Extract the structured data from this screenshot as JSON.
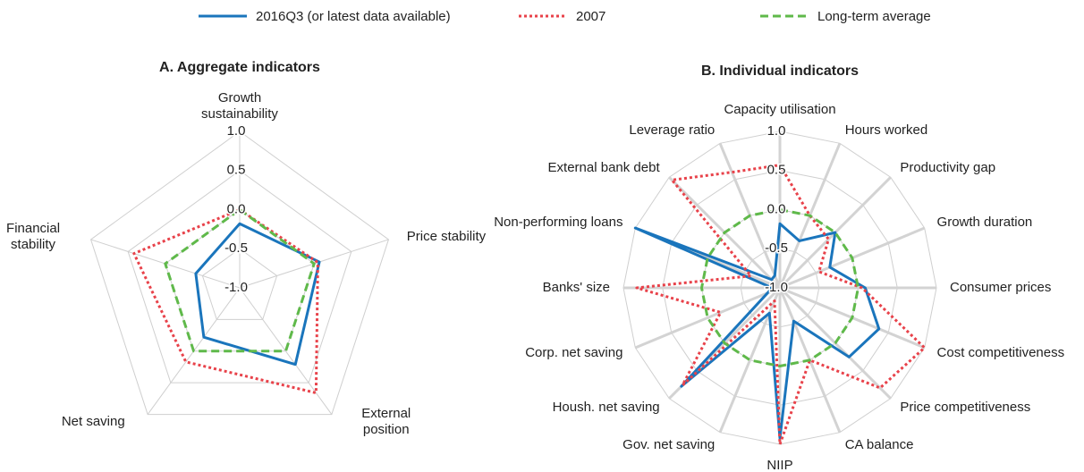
{
  "chart_data": [
    {
      "type": "radar",
      "title": "A. Aggregate indicators",
      "categories": [
        "Growth sustainability",
        "Price stability",
        "External position",
        "Net saving",
        "Financial stability"
      ],
      "series": [
        {
          "name": "2016Q3 (or latest data available)",
          "color": "#1a75bc",
          "dash": "solid",
          "values": [
            -0.18,
            0.07,
            0.21,
            -0.22,
            -0.41
          ]
        },
        {
          "name": "2007",
          "color": "#e8424a",
          "dash": "dotted",
          "values": [
            0.0,
            0.05,
            0.66,
            0.17,
            0.42
          ]
        },
        {
          "name": "Long-term average",
          "color": "#5fb94a",
          "dash": "dashed",
          "values": [
            0,
            0,
            0,
            0,
            0
          ]
        }
      ],
      "ylim": [
        -1,
        1
      ],
      "yticks": [
        {
          "value": -1,
          "label": "-1.0"
        },
        {
          "value": -0.5,
          "label": "-0.5"
        },
        {
          "value": 0,
          "label": "0.0"
        },
        {
          "value": 0.5,
          "label": "0.5"
        },
        {
          "value": 1,
          "label": "1.0"
        }
      ]
    },
    {
      "type": "radar",
      "title": "B.  Individual indicators",
      "categories": [
        "Capacity utilisation",
        "Hours worked",
        "Productivity gap",
        "Growth  duration",
        "Consumer prices",
        "Cost competitiveness",
        "Price competitiveness",
        "CA balance",
        "NIIP",
        "Gov. net saving",
        "Housh. net saving",
        "Corp. net saving",
        "Banks' size",
        "Non-performing loans",
        "External bank debt",
        "Leverage ratio"
      ],
      "series": [
        {
          "color": "#1a75bc",
          "dash": "solid",
          "values": [
            -0.18,
            -0.35,
            0.0,
            -0.31,
            0.09,
            0.37,
            0.25,
            -0.54,
            0.92,
            -0.65,
            0.78,
            -0.83,
            -0.9,
            1.0,
            -0.85,
            -0.83
          ]
        },
        {
          "color": "#e8424a",
          "dash": "dotted",
          "values": [
            0.57,
            0.0,
            -0.12,
            -0.46,
            0.05,
            1.0,
            0.81,
            0.0,
            1.0,
            -0.82,
            0.76,
            -0.18,
            0.83,
            -0.6,
            0.95,
            0.6
          ]
        },
        {
          "color": "#5fb94a",
          "dash": "dashed",
          "values": [
            0,
            0,
            0,
            0,
            0,
            0,
            0,
            0,
            0,
            0,
            0,
            0,
            0,
            0,
            0,
            0
          ]
        }
      ],
      "ylim": [
        -1,
        1
      ],
      "yticks": [
        {
          "value": -1,
          "label": "-1.0"
        },
        {
          "value": -0.5,
          "label": "-0.5"
        },
        {
          "value": 0,
          "label": "0.0"
        },
        {
          "value": 0.5,
          "label": "0.5"
        },
        {
          "value": 1,
          "label": "1.0"
        }
      ]
    }
  ]
}
